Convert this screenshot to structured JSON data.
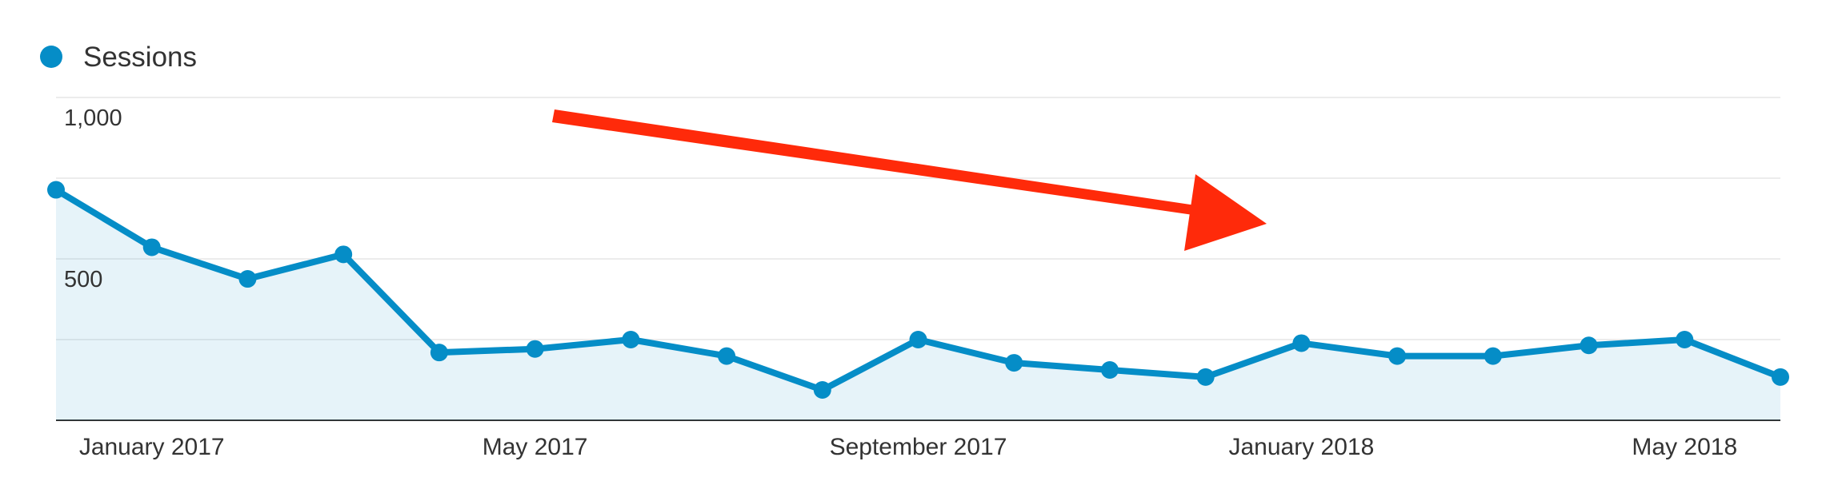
{
  "chart_data": {
    "type": "line",
    "legend": "Sessions",
    "categories": [
      null,
      "January 2017",
      null,
      null,
      null,
      "May 2017",
      null,
      null,
      null,
      "September 2017",
      null,
      null,
      null,
      "January 2018",
      null,
      null,
      null,
      "May 2018",
      null
    ],
    "series": [
      {
        "name": "Sessions",
        "color": "#058dc7",
        "values": [
          714,
          536,
          438,
          514,
          210,
          221,
          250,
          199,
          94,
          250,
          178,
          156,
          134,
          239,
          199,
          199,
          232,
          250,
          134
        ]
      }
    ],
    "ylim": [
      0,
      1000
    ],
    "yticks": [
      {
        "value": 500,
        "label": "500"
      },
      {
        "value": 1000,
        "label": "1,000"
      }
    ],
    "minor_yticks": [
      250,
      750
    ],
    "grid": true
  }
}
